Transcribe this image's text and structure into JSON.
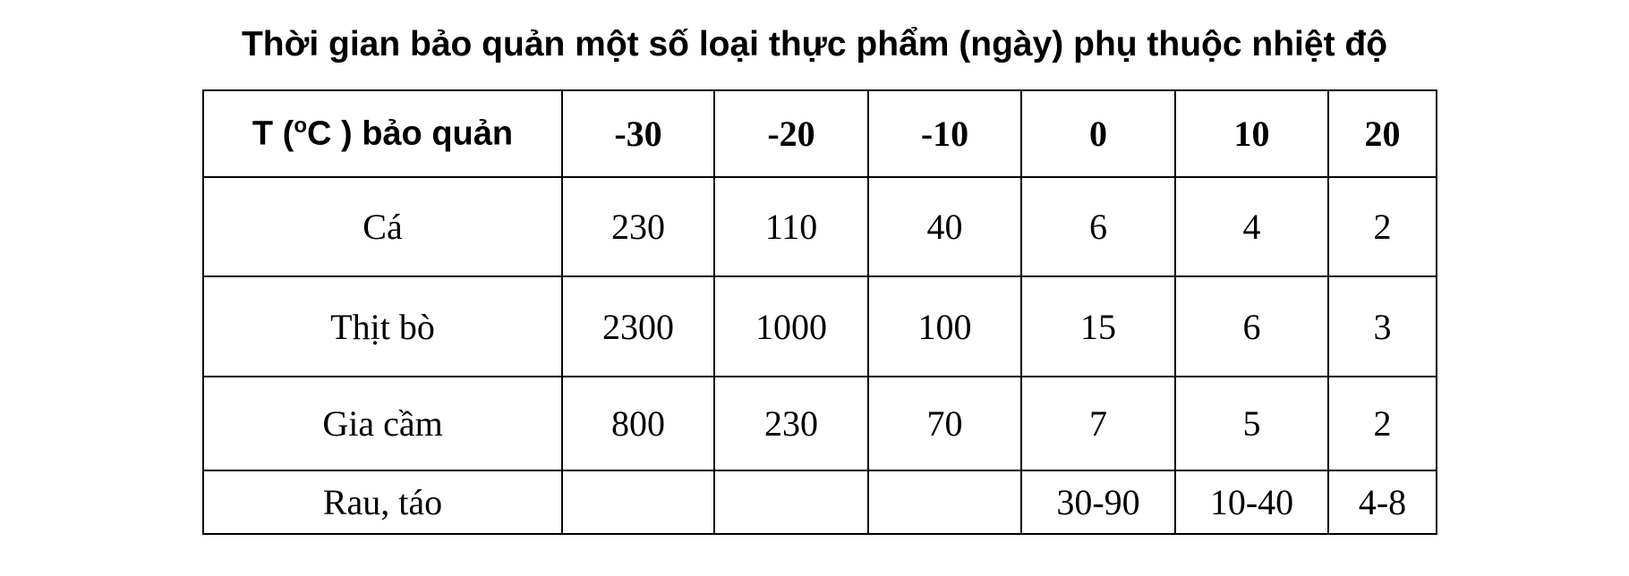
{
  "header": {
    "title": "Thời gian bảo quản một số loại thực phẩm (ngày) phụ thuộc nhiệt độ"
  },
  "table": {
    "corner": {
      "before": "T (",
      "sup": "o",
      "after": "C ) bảo quản"
    },
    "columns": [
      -30,
      -20,
      -10,
      0,
      10,
      20
    ],
    "rows": [
      {
        "name": "Cá",
        "cells": [
          230,
          110,
          40,
          6,
          4,
          2
        ]
      },
      {
        "name": "Thịt bò",
        "cells": [
          2300,
          1000,
          100,
          15,
          6,
          3
        ]
      },
      {
        "name": "Gia cầm",
        "cells": [
          800,
          230,
          70,
          7,
          5,
          2
        ]
      },
      {
        "name": "Rau, táo",
        "cells": [
          null,
          null,
          null,
          "30-90",
          "10-40",
          "4-8"
        ]
      }
    ]
  }
}
